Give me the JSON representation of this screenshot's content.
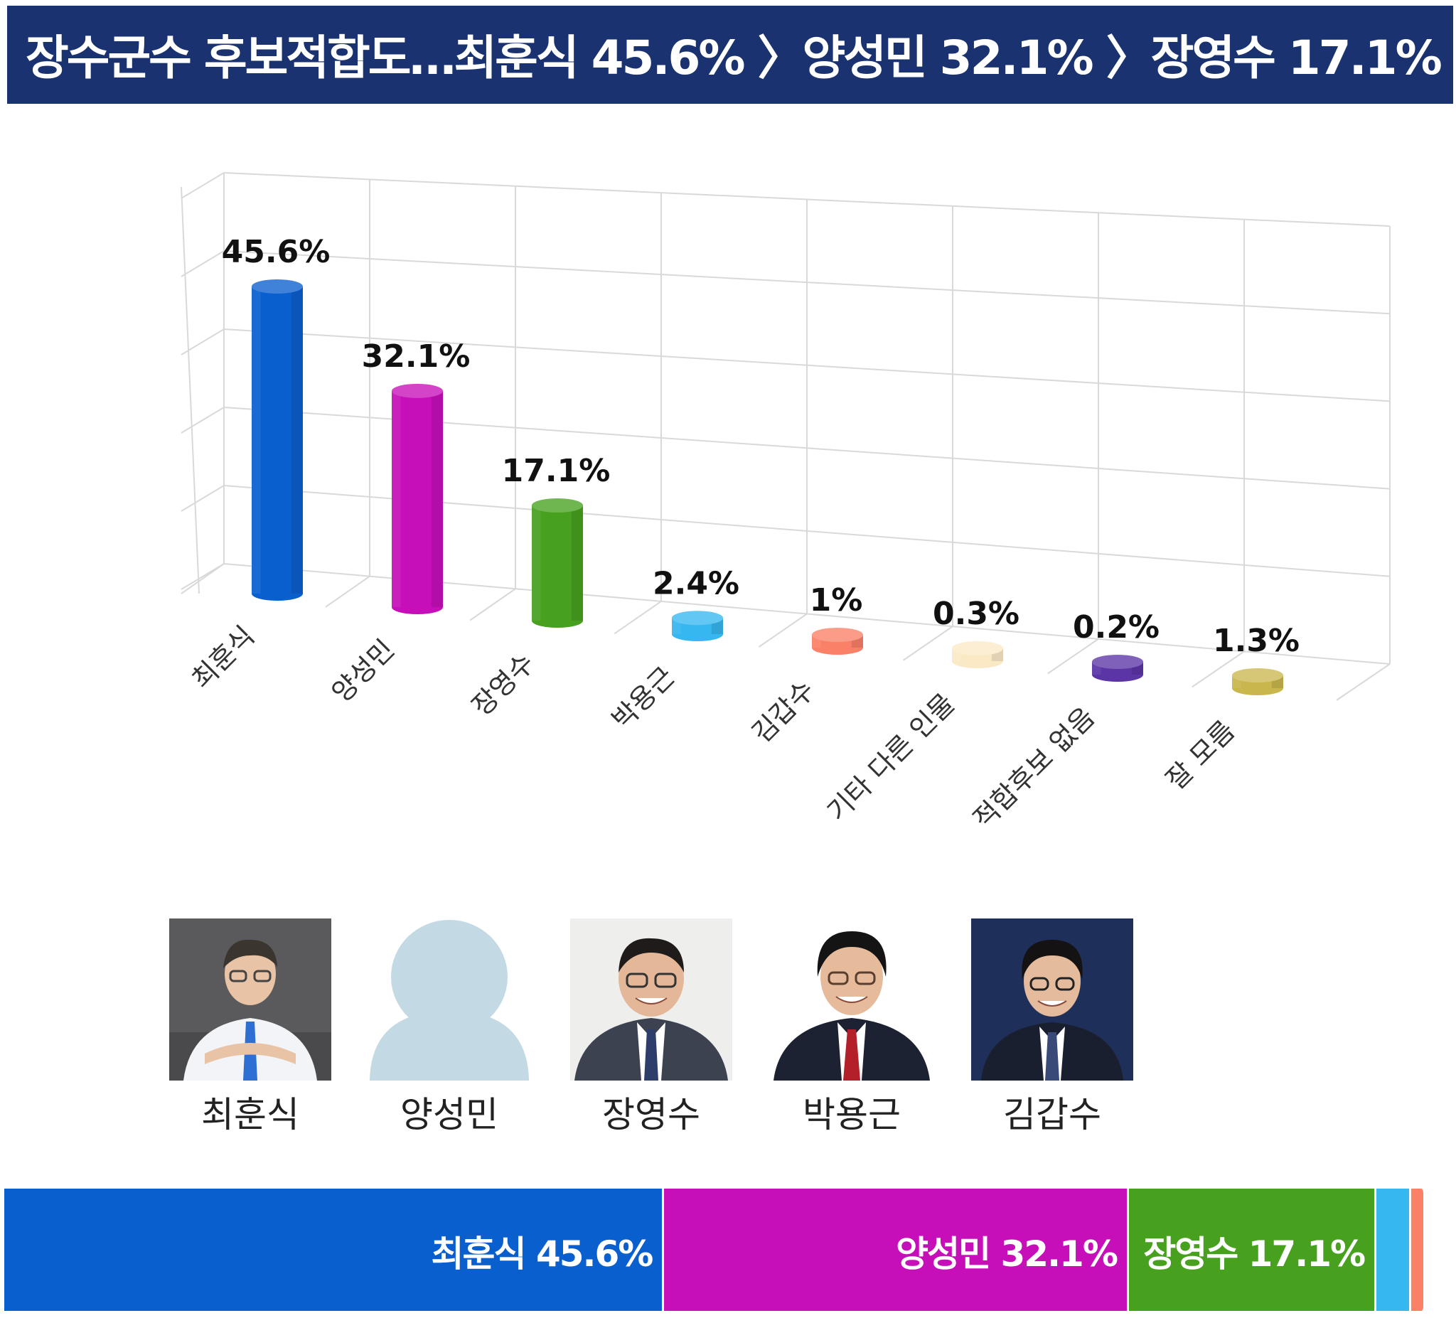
{
  "header": {
    "title": "장수군수 후보적합도…최훈식 45.6% 〉양성민 32.1% 〉장영수 17.1%"
  },
  "chart_data": {
    "type": "bar",
    "categories": [
      "최훈식",
      "양성민",
      "장영수",
      "박용근",
      "김갑수",
      "기타 다른 인물",
      "적합후보 없음",
      "잘 모름"
    ],
    "values": [
      45.6,
      32.1,
      17.1,
      2.4,
      1,
      0.3,
      0.2,
      1.3
    ],
    "value_labels": [
      "45.6%",
      "32.1%",
      "17.1%",
      "2.4%",
      "1%",
      "0.3%",
      "0.2%",
      "1.3%"
    ],
    "colors": [
      "#0a5fcf",
      "#c60fb8",
      "#47a11f",
      "#36b7ef",
      "#fa8068",
      "#fbe9c6",
      "#5b35a6",
      "#c9b74e"
    ],
    "title": "",
    "xlabel": "",
    "ylabel": "",
    "ylim": [
      0,
      50
    ],
    "grid": true,
    "style": "3d-cylinder"
  },
  "candidates": [
    {
      "name": "최훈식",
      "photo": "portrait-photo"
    },
    {
      "name": "양성민",
      "photo": "placeholder-silhouette"
    },
    {
      "name": "장영수",
      "photo": "portrait-photo"
    },
    {
      "name": "박용근",
      "photo": "portrait-photo"
    },
    {
      "name": "김갑수",
      "photo": "portrait-photo"
    }
  ],
  "stacked_bar": {
    "segments": [
      {
        "name": "최훈식",
        "value": 45.6,
        "label": "최훈식 45.6%",
        "color": "#0a5fcf"
      },
      {
        "name": "양성민",
        "value": 32.1,
        "label": "양성민 32.1%",
        "color": "#c60fb8"
      },
      {
        "name": "장영수",
        "value": 17.1,
        "label": "장영수 17.1%",
        "color": "#47a11f"
      },
      {
        "name": "박용근",
        "value": 2.4,
        "label": "",
        "color": "#36b7ef"
      },
      {
        "name": "김갑수",
        "value": 1,
        "label": "",
        "color": "#fa8068"
      }
    ]
  }
}
